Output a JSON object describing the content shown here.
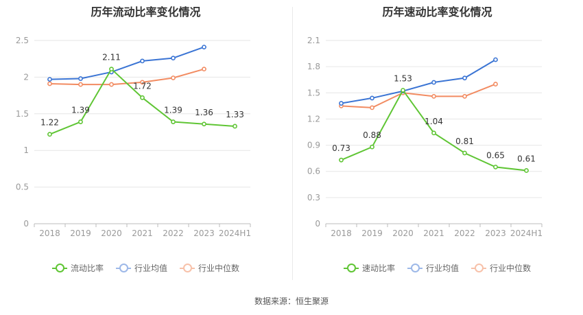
{
  "source": "数据来源：恒生聚源",
  "colors": {
    "company": "#5fc534",
    "avg": "#3a74d4",
    "median": "#f28b61",
    "grid": "#e6e6e6",
    "axis": "#999999"
  },
  "legend_labels": {
    "company_left": "流动比率",
    "company_right": "速动比率",
    "avg": "行业均值",
    "median": "行业中位数"
  },
  "chart_data": [
    {
      "type": "line",
      "title": "历年流动比率变化情况",
      "categories": [
        "2018",
        "2019",
        "2020",
        "2021",
        "2022",
        "2023",
        "2024H1"
      ],
      "ylim": [
        0,
        2.5
      ],
      "yticks": [
        "0",
        "0.5",
        "1",
        "1.5",
        "2",
        "2.5"
      ],
      "series": [
        {
          "name": "流动比率",
          "values": [
            1.22,
            1.39,
            2.11,
            1.72,
            1.39,
            1.36,
            1.33
          ],
          "labels": [
            "1.22",
            "1.39",
            "2.11",
            "1.72",
            "1.39",
            "1.36",
            "1.33"
          ]
        },
        {
          "name": "行业均值",
          "values": [
            1.97,
            1.98,
            2.07,
            2.22,
            2.26,
            2.41,
            null
          ]
        },
        {
          "name": "行业中位数",
          "values": [
            1.91,
            1.9,
            1.9,
            1.93,
            1.99,
            2.11,
            null
          ]
        }
      ]
    },
    {
      "type": "line",
      "title": "历年速动比率变化情况",
      "categories": [
        "2018",
        "2019",
        "2020",
        "2021",
        "2022",
        "2023",
        "2024H1"
      ],
      "ylim": [
        0,
        2.1
      ],
      "yticks": [
        "0",
        "0.3",
        "0.6",
        "0.9",
        "1.2",
        "1.5",
        "1.8",
        "2.1"
      ],
      "series": [
        {
          "name": "速动比率",
          "values": [
            0.73,
            0.88,
            1.53,
            1.04,
            0.81,
            0.65,
            0.61
          ],
          "labels": [
            "0.73",
            "0.88",
            "1.53",
            "1.04",
            "0.81",
            "0.65",
            "0.61"
          ]
        },
        {
          "name": "行业均值",
          "values": [
            1.38,
            1.44,
            1.52,
            1.62,
            1.67,
            1.88,
            null
          ]
        },
        {
          "name": "行业中位数",
          "values": [
            1.35,
            1.33,
            1.5,
            1.46,
            1.46,
            1.6,
            null
          ]
        }
      ]
    }
  ]
}
